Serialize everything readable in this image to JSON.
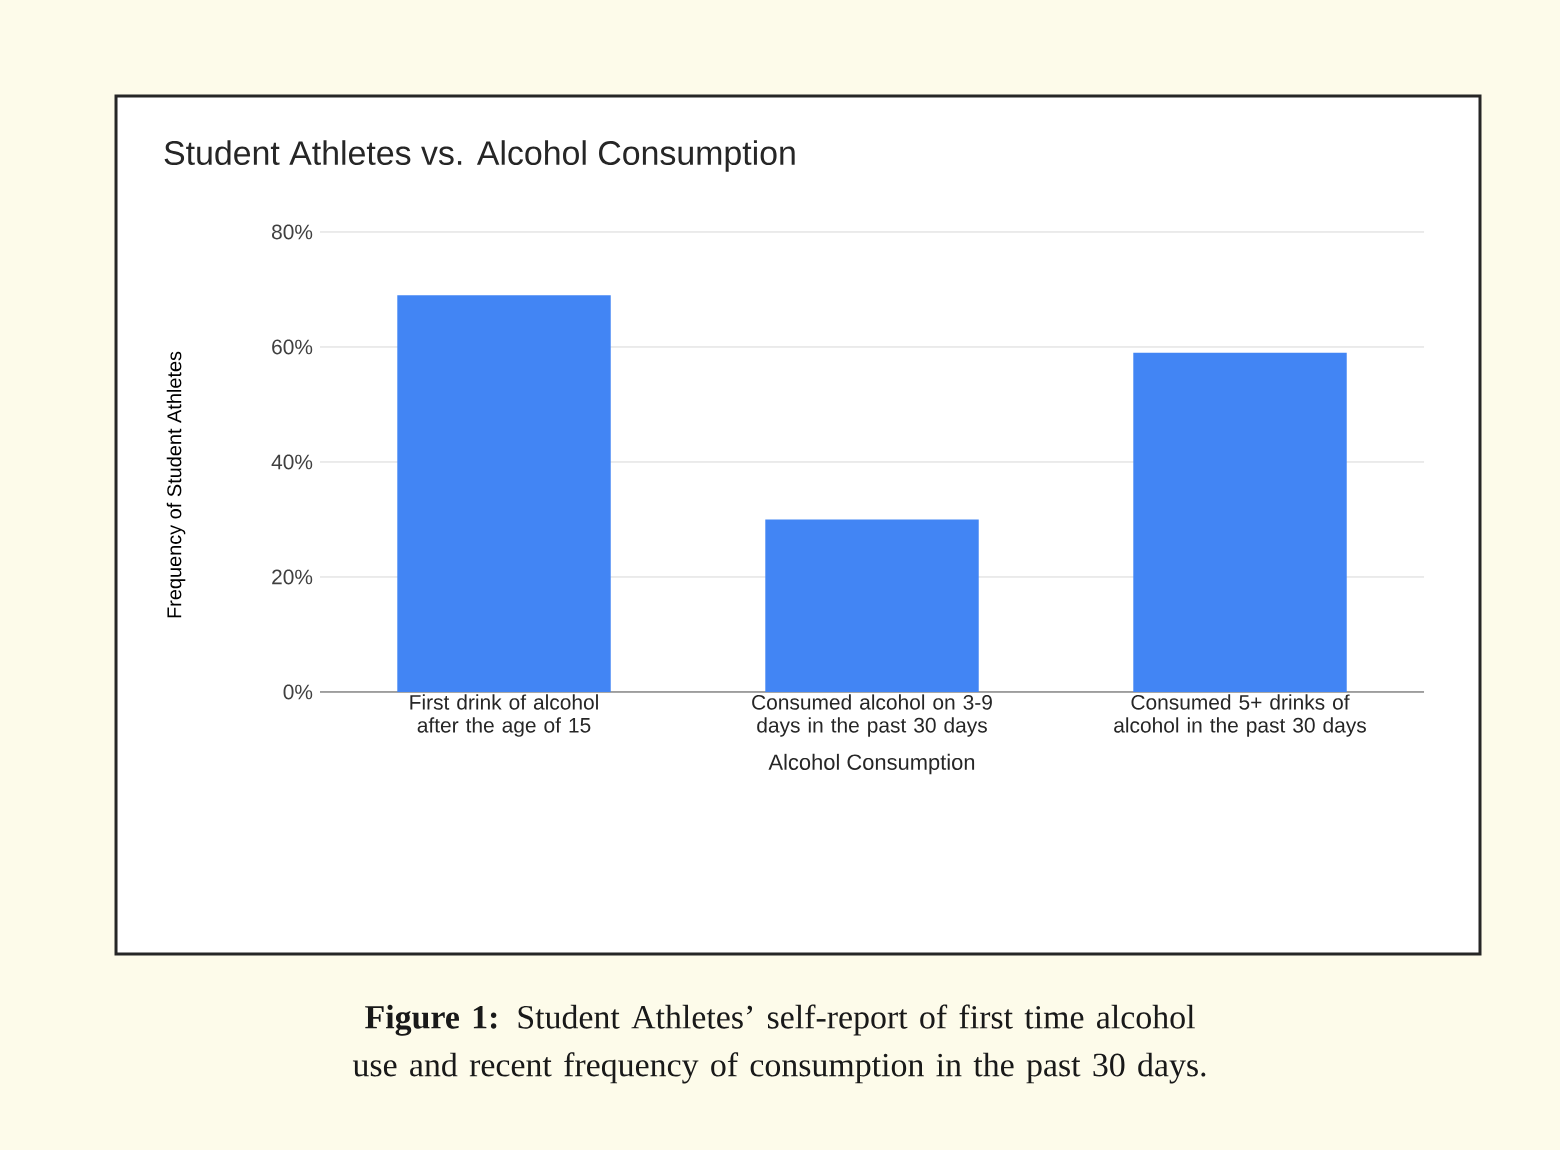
{
  "chart_data": {
    "type": "bar",
    "title": "Student Athletes vs. Alcohol Consumption",
    "xlabel": "Alcohol Consumption",
    "ylabel": "Frequency of Student Athletes",
    "categories": [
      "First drink of alcohol after the age of 15",
      "Consumed alcohol on 3-9 days in the past 30 days",
      "Consumed 5+ drinks of alcohol in the past 30 days"
    ],
    "values": [
      69,
      30,
      59
    ],
    "color": "#4285f4",
    "ylim": [
      0,
      80
    ],
    "yticks": [
      {
        "value": 0,
        "label": "0%"
      },
      {
        "value": 20,
        "label": "20%"
      },
      {
        "value": 40,
        "label": "40%"
      },
      {
        "value": 60,
        "label": "60%"
      },
      {
        "value": 80,
        "label": "80%"
      }
    ],
    "grid": "y",
    "annotations": [
      "**Figure 1:** Student Athletes’ self-report of first time alcohol use and recent frequency of consumption in the past 30 days."
    ]
  }
}
